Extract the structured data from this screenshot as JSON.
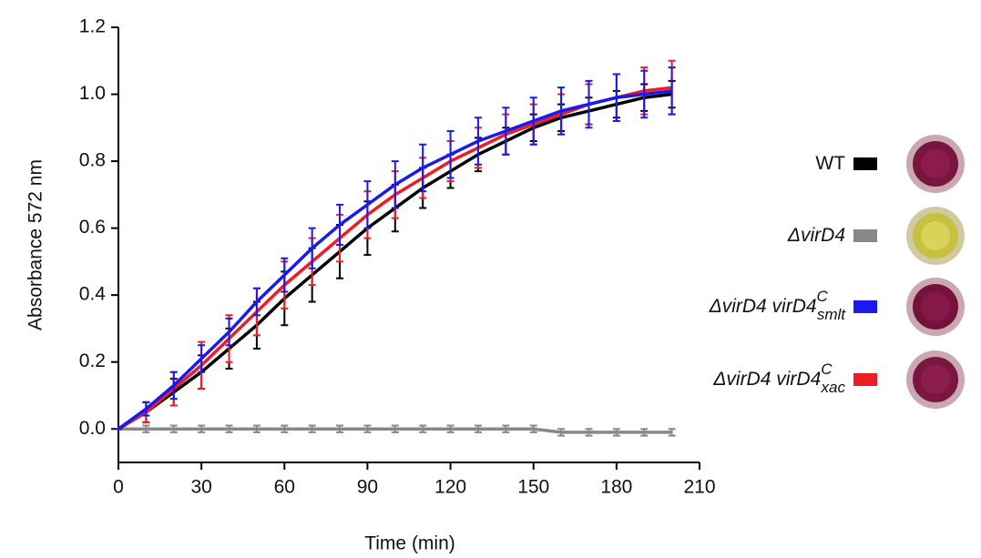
{
  "chart_data": {
    "type": "line",
    "x_label": "Time (min)",
    "y_label": "Absorbance 572 nm",
    "x": [
      0,
      10,
      20,
      30,
      40,
      50,
      60,
      70,
      80,
      90,
      100,
      110,
      120,
      130,
      140,
      150,
      160,
      170,
      180,
      190,
      200
    ],
    "xlim": [
      0,
      210
    ],
    "xticks": [
      0,
      30,
      60,
      90,
      120,
      150,
      180,
      210
    ],
    "ylim": [
      -0.1,
      1.2
    ],
    "yticks": [
      {
        "value": 0,
        "label": "0.0"
      },
      {
        "value": 0.2,
        "label": "0.2"
      },
      {
        "value": 0.4,
        "label": "0.4"
      },
      {
        "value": 0.6,
        "label": "0.6"
      },
      {
        "value": 0.8,
        "label": "0.8"
      },
      {
        "value": 1,
        "label": "1.0"
      },
      {
        "value": 1.2,
        "label": "1.2"
      }
    ],
    "series": [
      {
        "name": "ΔvirD4",
        "color": "#888888",
        "values": [
          0,
          0,
          0,
          0,
          0,
          0,
          0,
          0,
          0,
          0,
          0,
          0,
          0,
          0,
          0,
          0,
          -0.01,
          -0.01,
          -0.01,
          -0.01,
          -0.01
        ],
        "errors": [
          0,
          0.01,
          0.01,
          0.01,
          0.01,
          0.01,
          0.01,
          0.01,
          0.01,
          0.01,
          0.01,
          0.01,
          0.01,
          0.01,
          0.01,
          0.01,
          0.01,
          0.01,
          0.01,
          0.01,
          0.01
        ]
      },
      {
        "name": "WT",
        "color": "#000000",
        "values": [
          0,
          0.05,
          0.11,
          0.17,
          0.24,
          0.31,
          0.39,
          0.46,
          0.53,
          0.6,
          0.66,
          0.72,
          0.77,
          0.82,
          0.86,
          0.9,
          0.93,
          0.95,
          0.97,
          0.99,
          1.0
        ],
        "errors": [
          0,
          0.03,
          0.04,
          0.05,
          0.06,
          0.07,
          0.08,
          0.08,
          0.08,
          0.08,
          0.07,
          0.06,
          0.05,
          0.05,
          0.04,
          0.04,
          0.04,
          0.04,
          0.04,
          0.04,
          0.04
        ]
      },
      {
        "name": "ΔvirD4 virD4",
        "superscript": "C",
        "subscript": "xac",
        "color": "#ee1c24",
        "values": [
          0,
          0.05,
          0.12,
          0.19,
          0.27,
          0.35,
          0.43,
          0.5,
          0.57,
          0.64,
          0.7,
          0.75,
          0.8,
          0.84,
          0.88,
          0.91,
          0.94,
          0.97,
          0.99,
          1.01,
          1.02
        ],
        "errors": [
          0,
          0.03,
          0.05,
          0.07,
          0.07,
          0.07,
          0.07,
          0.07,
          0.07,
          0.07,
          0.07,
          0.06,
          0.06,
          0.06,
          0.06,
          0.06,
          0.06,
          0.06,
          0.07,
          0.07,
          0.08
        ]
      },
      {
        "name": "ΔvirD4 virD4",
        "superscript": "C",
        "subscript": "smlt",
        "color": "#1a1aee",
        "values": [
          0,
          0.06,
          0.13,
          0.21,
          0.29,
          0.38,
          0.46,
          0.54,
          0.61,
          0.67,
          0.73,
          0.78,
          0.82,
          0.86,
          0.89,
          0.92,
          0.95,
          0.97,
          0.99,
          1.0,
          1.01
        ],
        "errors": [
          0,
          0.02,
          0.04,
          0.04,
          0.04,
          0.04,
          0.05,
          0.06,
          0.06,
          0.07,
          0.07,
          0.07,
          0.07,
          0.07,
          0.07,
          0.07,
          0.07,
          0.07,
          0.07,
          0.07,
          0.07
        ]
      }
    ],
    "legend_order": [
      1,
      0,
      3,
      2
    ]
  }
}
